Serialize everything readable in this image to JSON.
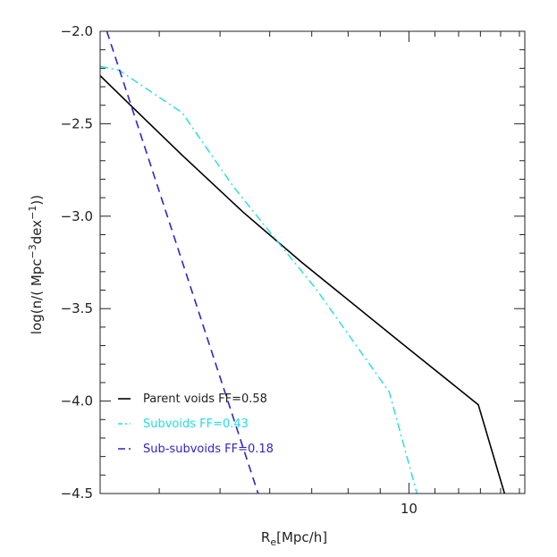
{
  "chart_data": {
    "type": "line",
    "title": "",
    "xlabel": {
      "base": "R",
      "sub": "e",
      "rest": "[Mpc/h]"
    },
    "ylabel": {
      "pre": "log(n/( Mpc",
      "sup1": "−3",
      "mid": "dex",
      "sup2": "−1",
      "post": "))"
    },
    "x_scale": "log",
    "xlim": [
      3.22,
      15.3
    ],
    "ylim": [
      -4.5,
      -2.0
    ],
    "x_ticks": [
      10
    ],
    "x_tick_labels": [
      "10"
    ],
    "y_ticks": [
      -4.5,
      -4.0,
      -3.5,
      -3.0,
      -2.5,
      -2.0
    ],
    "y_tick_labels": [
      "−4.5",
      "−4.0",
      "−3.5",
      "−3.0",
      "−2.5",
      "−2.0"
    ],
    "legend_position": "bottom-left",
    "series": [
      {
        "name": "Parent voids FF=0.58",
        "color": "#000000",
        "dash": "solid",
        "x": [
          3.22,
          3.55,
          4.35,
          5.45,
          6.75,
          9.6,
          12.9,
          14.2
        ],
        "y": [
          -2.24,
          -2.38,
          -2.67,
          -2.98,
          -3.25,
          -3.67,
          -4.02,
          -4.5
        ]
      },
      {
        "name": "Subvoids FF=0.43",
        "color": "#22dddd",
        "dash": "dashdot",
        "x": [
          3.22,
          3.45,
          4.35,
          5.25,
          6.05,
          7.1,
          9.3,
          10.3
        ],
        "y": [
          -2.19,
          -2.21,
          -2.44,
          -2.84,
          -3.1,
          -3.39,
          -3.95,
          -4.5
        ]
      },
      {
        "name": "Sub-subvoids FF=0.18",
        "color": "#3322cc",
        "dash": "dashed",
        "x": [
          3.3,
          5.75
        ],
        "y": [
          -2.0,
          -4.5
        ]
      }
    ]
  }
}
